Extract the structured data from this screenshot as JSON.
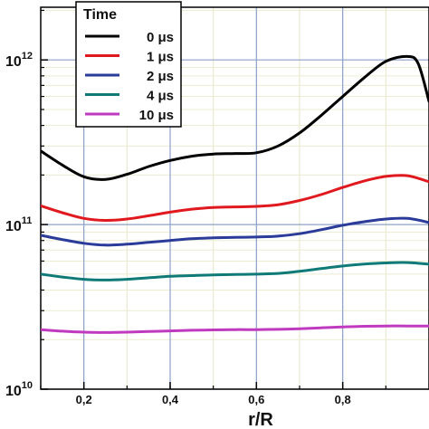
{
  "chart_data": {
    "type": "line",
    "title": "",
    "xlabel": "r/R",
    "ylabel": "",
    "yscale": "log",
    "xlim": [
      0.1,
      1.0
    ],
    "ylim_exp": [
      10,
      12.32
    ],
    "grid": true,
    "x_ticks": [
      0.2,
      0.4,
      0.6,
      0.8
    ],
    "x_tick_labels": [
      "0,2",
      "0,4",
      "0,6",
      "0,8"
    ],
    "y_ticks": [
      {
        "exp": 10,
        "base": "10",
        "sup": "10"
      },
      {
        "exp": 11,
        "base": "10",
        "sup": "11"
      },
      {
        "exp": 12,
        "base": "10",
        "sup": "12"
      }
    ],
    "legend": {
      "title": "Time",
      "placement": "top-left"
    },
    "series": [
      {
        "name": "0 μs",
        "color": "#000000",
        "x": [
          0.1,
          0.15,
          0.2,
          0.25,
          0.3,
          0.35,
          0.4,
          0.45,
          0.5,
          0.55,
          0.6,
          0.65,
          0.7,
          0.75,
          0.8,
          0.85,
          0.9,
          0.95,
          0.975,
          1.0
        ],
        "y": [
          280000000000.0,
          230000000000.0,
          195000000000.0,
          188000000000.0,
          202000000000.0,
          225000000000.0,
          245000000000.0,
          260000000000.0,
          268000000000.0,
          270000000000.0,
          273000000000.0,
          300000000000.0,
          360000000000.0,
          460000000000.0,
          600000000000.0,
          780000000000.0,
          980000000000.0,
          1050000000000.0,
          950000000000.0,
          560000000000.0
        ]
      },
      {
        "name": "1 μs",
        "color": "#e0191e",
        "x": [
          0.1,
          0.15,
          0.2,
          0.25,
          0.3,
          0.35,
          0.4,
          0.45,
          0.5,
          0.55,
          0.6,
          0.65,
          0.7,
          0.75,
          0.8,
          0.85,
          0.9,
          0.95,
          1.0
        ],
        "y": [
          130000000000.0,
          118000000000.0,
          109000000000.0,
          106000000000.0,
          108000000000.0,
          113000000000.0,
          119000000000.0,
          124000000000.0,
          127000000000.0,
          128000000000.0,
          129000000000.0,
          132000000000.0,
          140000000000.0,
          152000000000.0,
          168000000000.0,
          184000000000.0,
          196000000000.0,
          198000000000.0,
          182000000000.0
        ]
      },
      {
        "name": "2 μs",
        "color": "#2a3b9a",
        "x": [
          0.1,
          0.15,
          0.2,
          0.25,
          0.3,
          0.35,
          0.4,
          0.45,
          0.5,
          0.55,
          0.6,
          0.65,
          0.7,
          0.75,
          0.8,
          0.85,
          0.9,
          0.95,
          1.0
        ],
        "y": [
          86000000000.0,
          81000000000.0,
          77000000000.0,
          75000000000.0,
          76000000000.0,
          78000000000.0,
          80000000000.0,
          82000000000.0,
          83000000000.0,
          83500000000.0,
          84000000000.0,
          85000000000.0,
          88000000000.0,
          93000000000.0,
          99000000000.0,
          104000000000.0,
          108000000000.0,
          109000000000.0,
          103000000000.0
        ]
      },
      {
        "name": "4 μs",
        "color": "#0f7a78",
        "x": [
          0.1,
          0.15,
          0.2,
          0.25,
          0.3,
          0.35,
          0.4,
          0.45,
          0.5,
          0.55,
          0.6,
          0.65,
          0.7,
          0.75,
          0.8,
          0.85,
          0.9,
          0.95,
          1.0
        ],
        "y": [
          50000000000.0,
          48000000000.0,
          46500000000.0,
          46000000000.0,
          46500000000.0,
          47500000000.0,
          48500000000.0,
          49000000000.0,
          49500000000.0,
          49700000000.0,
          50000000000.0,
          50500000000.0,
          52000000000.0,
          54000000000.0,
          56000000000.0,
          57500000000.0,
          58500000000.0,
          58800000000.0,
          57500000000.0
        ]
      },
      {
        "name": "10 μs",
        "color": "#c03ac0",
        "x": [
          0.1,
          0.15,
          0.2,
          0.25,
          0.3,
          0.35,
          0.4,
          0.45,
          0.5,
          0.55,
          0.6,
          0.65,
          0.7,
          0.75,
          0.8,
          0.85,
          0.9,
          0.95,
          1.0
        ],
        "y": [
          23000000000.0,
          22500000000.0,
          22200000000.0,
          22100000000.0,
          22200000000.0,
          22400000000.0,
          22600000000.0,
          22800000000.0,
          22900000000.0,
          23000000000.0,
          23000000000.0,
          23100000000.0,
          23300000000.0,
          23600000000.0,
          23900000000.0,
          24100000000.0,
          24200000000.0,
          24200000000.0,
          24200000000.0
        ]
      }
    ]
  }
}
